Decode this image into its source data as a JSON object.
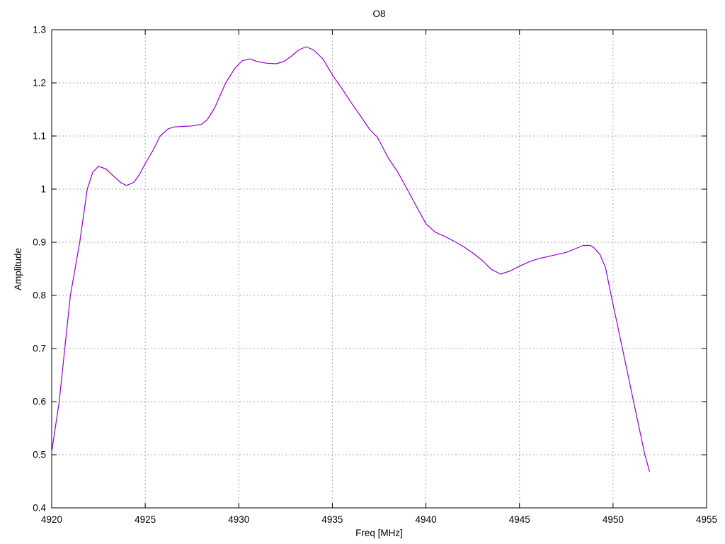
{
  "chart_data": {
    "type": "line",
    "title": "O8",
    "xlabel": "Freq [MHz]",
    "ylabel": "Amplitude",
    "xlim": [
      4920,
      4955
    ],
    "ylim": [
      0.4,
      1.3
    ],
    "xticks": {
      "values": [
        4920,
        4925,
        4930,
        4935,
        4940,
        4945,
        4950,
        4955
      ],
      "labels": [
        "4920",
        "4925",
        "4930",
        "4935",
        "4940",
        "4945",
        "4950",
        "4955"
      ]
    },
    "yticks": {
      "values": [
        0.4,
        0.5,
        0.6,
        0.7,
        0.8,
        0.9,
        1.0,
        1.1,
        1.2,
        1.3
      ],
      "labels": [
        "0.4",
        "0.5",
        "0.6",
        "0.7",
        "0.8",
        "0.9",
        "1",
        "1.1",
        "1.2",
        "1.3"
      ]
    },
    "grid": {
      "style": "dashed",
      "color": "#ababab"
    },
    "border_color": "#000000",
    "legend": "none",
    "series": [
      {
        "name": "O8",
        "color": "#9400d3",
        "points": [
          [
            4920.0,
            0.505
          ],
          [
            4920.4,
            0.6
          ],
          [
            4920.7,
            0.7
          ],
          [
            4921.0,
            0.8
          ],
          [
            4921.5,
            0.9
          ],
          [
            4921.9,
            1.0
          ],
          [
            4922.2,
            1.032
          ],
          [
            4922.5,
            1.043
          ],
          [
            4922.9,
            1.038
          ],
          [
            4923.3,
            1.025
          ],
          [
            4923.7,
            1.012
          ],
          [
            4924.0,
            1.007
          ],
          [
            4924.4,
            1.013
          ],
          [
            4924.7,
            1.028
          ],
          [
            4925.0,
            1.048
          ],
          [
            4925.4,
            1.072
          ],
          [
            4925.8,
            1.1
          ],
          [
            4926.2,
            1.113
          ],
          [
            4926.5,
            1.117
          ],
          [
            4927.0,
            1.118
          ],
          [
            4927.5,
            1.119
          ],
          [
            4928.0,
            1.122
          ],
          [
            4928.3,
            1.13
          ],
          [
            4928.7,
            1.152
          ],
          [
            4929.3,
            1.2
          ],
          [
            4929.8,
            1.228
          ],
          [
            4930.2,
            1.242
          ],
          [
            4930.6,
            1.245
          ],
          [
            4931.0,
            1.24
          ],
          [
            4931.5,
            1.237
          ],
          [
            4932.0,
            1.236
          ],
          [
            4932.4,
            1.24
          ],
          [
            4932.8,
            1.25
          ],
          [
            4933.2,
            1.262
          ],
          [
            4933.6,
            1.268
          ],
          [
            4934.0,
            1.262
          ],
          [
            4934.5,
            1.245
          ],
          [
            4935.0,
            1.215
          ],
          [
            4935.5,
            1.19
          ],
          [
            4936.0,
            1.163
          ],
          [
            4936.5,
            1.138
          ],
          [
            4937.0,
            1.112
          ],
          [
            4937.4,
            1.098
          ],
          [
            4938.0,
            1.058
          ],
          [
            4938.5,
            1.032
          ],
          [
            4939.0,
            1.0
          ],
          [
            4939.5,
            0.967
          ],
          [
            4940.0,
            0.935
          ],
          [
            4940.5,
            0.919
          ],
          [
            4941.0,
            0.911
          ],
          [
            4941.5,
            0.902
          ],
          [
            4942.0,
            0.892
          ],
          [
            4942.5,
            0.88
          ],
          [
            4943.0,
            0.866
          ],
          [
            4943.5,
            0.849
          ],
          [
            4944.0,
            0.84
          ],
          [
            4944.5,
            0.846
          ],
          [
            4945.0,
            0.855
          ],
          [
            4945.5,
            0.863
          ],
          [
            4946.0,
            0.869
          ],
          [
            4946.5,
            0.873
          ],
          [
            4947.0,
            0.877
          ],
          [
            4947.5,
            0.881
          ],
          [
            4948.0,
            0.888
          ],
          [
            4948.4,
            0.894
          ],
          [
            4948.8,
            0.894
          ],
          [
            4949.0,
            0.889
          ],
          [
            4949.3,
            0.877
          ],
          [
            4949.6,
            0.852
          ],
          [
            4949.9,
            0.8
          ],
          [
            4950.5,
            0.7
          ],
          [
            4951.1,
            0.6
          ],
          [
            4951.7,
            0.5
          ],
          [
            4951.95,
            0.469
          ]
        ]
      }
    ]
  }
}
